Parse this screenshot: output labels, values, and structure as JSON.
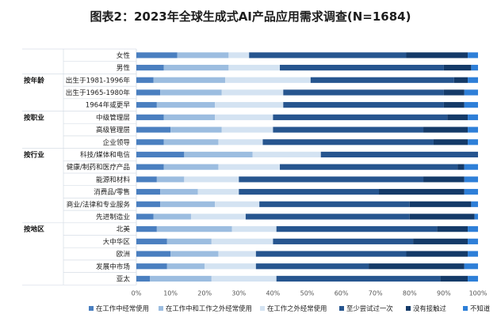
{
  "chart_data": {
    "type": "bar",
    "orientation": "horizontal",
    "stacked": true,
    "title": "图表2：2023年全球生成式AI产品应用需求调查(N=1684)",
    "groups": [
      {
        "label": "",
        "categories": [
          "女性",
          "男性"
        ]
      },
      {
        "label": "按年龄",
        "categories": [
          "出生于1981-1996年",
          "出生于1965-1980年",
          "1964年或更早"
        ]
      },
      {
        "label": "按职业",
        "categories": [
          "中级管理层",
          "高级管理层",
          "企业领导"
        ]
      },
      {
        "label": "按行业",
        "categories": [
          "科技/媒体和电信",
          "健康/制药和医疗产品",
          "能源和材料",
          "消费品/零售",
          "商业/法律和专业服务",
          "先进制造业"
        ]
      },
      {
        "label": "按地区",
        "categories": [
          "北美",
          "大中华区",
          "欧洲",
          "发展中市场",
          "亚太"
        ]
      }
    ],
    "categories": [
      "女性",
      "男性",
      "出生于1981-1996年",
      "出生于1965-1980年",
      "1964年或更早",
      "中级管理层",
      "高级管理层",
      "企业领导",
      "科技/媒体和电信",
      "健康/制药和医疗产品",
      "能源和材料",
      "消费品/零售",
      "商业/法律和专业服务",
      "先进制造业",
      "北美",
      "大中华区",
      "欧洲",
      "发展中市场",
      "亚太"
    ],
    "series": [
      {
        "name": "在工作中经常使用",
        "color": "#4a7fc0",
        "values": [
          12,
          8,
          5,
          7,
          6,
          8,
          10,
          8,
          14,
          8,
          6,
          7,
          7,
          5,
          6,
          9,
          10,
          9,
          4
        ]
      },
      {
        "name": "在工作中和工作之外经常使用",
        "color": "#9cbde0",
        "values": [
          15,
          19,
          21,
          18,
          17,
          15,
          15,
          16,
          20,
          16,
          8,
          11,
          16,
          11,
          22,
          13,
          14,
          11,
          18
        ]
      },
      {
        "name": "在工作之外经常使用",
        "color": "#d4e3f2",
        "values": [
          6,
          15,
          25,
          18,
          20,
          17,
          15,
          13,
          20,
          18,
          16,
          12,
          13,
          16,
          13,
          18,
          11,
          15,
          19
        ]
      },
      {
        "name": "至少尝试过一次",
        "color": "#26558f",
        "values": [
          46,
          48,
          42,
          47,
          47,
          51,
          44,
          50,
          46,
          52,
          54,
          41,
          44,
          48,
          47,
          41,
          44,
          33,
          48
        ]
      },
      {
        "name": "没有接触过",
        "color": "#143a68",
        "values": [
          18,
          8,
          4,
          6,
          6,
          6,
          13,
          10,
          0,
          2,
          12,
          25,
          18,
          19,
          9,
          16,
          18,
          28,
          8
        ]
      },
      {
        "name": "不知道",
        "color": "#2e7fd8",
        "values": [
          3,
          2,
          3,
          4,
          4,
          3,
          3,
          3,
          0,
          4,
          4,
          4,
          2,
          1,
          3,
          3,
          3,
          4,
          3
        ]
      }
    ],
    "xlim": [
      0,
      100
    ],
    "x_ticks": [
      "0%",
      "10%",
      "20%",
      "30%",
      "40%",
      "50%",
      "60%",
      "70%",
      "80%",
      "90%",
      "100%"
    ],
    "legend_position": "bottom",
    "grid": false
  }
}
